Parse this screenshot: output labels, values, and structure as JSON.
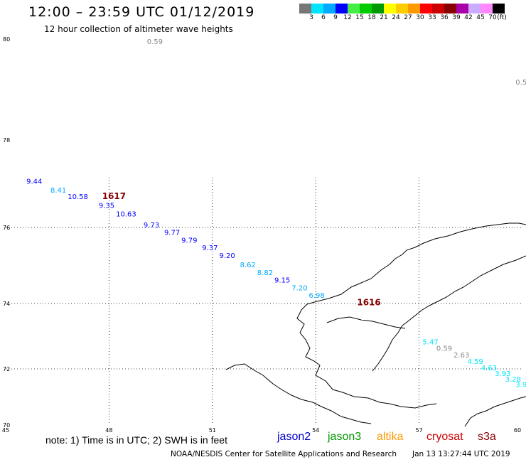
{
  "header": {
    "title": "12:00 – 23:59 UTC 01/12/2019",
    "subtitle": "12 hour collection of altimeter wave heights"
  },
  "legend": {
    "unit": "(ft)",
    "colors": [
      "#777777",
      "#00e5ff",
      "#00aaff",
      "#0000ff",
      "#44ee44",
      "#00cc00",
      "#009900",
      "#ffff00",
      "#ffcc00",
      "#ff9900",
      "#ff0000",
      "#cc0000",
      "#880000",
      "#aa00aa",
      "#ccaaff",
      "#ff88ff",
      "#000000"
    ],
    "labels": [
      "3",
      "6",
      "9",
      "12",
      "15",
      "18",
      "21",
      "24",
      "27",
      "30",
      "33",
      "36",
      "39",
      "42",
      "45",
      "70"
    ]
  },
  "map": {
    "lat_labels": [
      "80",
      "78",
      "76",
      "74",
      "72",
      "70"
    ],
    "lon_labels": [
      "45",
      "48",
      "51",
      "54",
      "57",
      "60"
    ],
    "wave_heights": [
      {
        "text": "0.59",
        "lon": 49.1,
        "lat": 79.9,
        "color": "#888888"
      },
      {
        "text": "0.5",
        "lon": 59.8,
        "lat": 79.1,
        "color": "#888888"
      },
      {
        "text": "9.44",
        "lon": 45.6,
        "lat": 77.0,
        "color": "#0000ff"
      },
      {
        "text": "8.41",
        "lon": 46.3,
        "lat": 76.8,
        "color": "#00aaff"
      },
      {
        "text": "10.58",
        "lon": 46.8,
        "lat": 76.65,
        "color": "#0000ff"
      },
      {
        "text": "9.35",
        "lon": 47.7,
        "lat": 76.45,
        "color": "#0000ff"
      },
      {
        "text": "10.63",
        "lon": 48.2,
        "lat": 76.25,
        "color": "#0000ff"
      },
      {
        "text": "9.73",
        "lon": 49.0,
        "lat": 76.0,
        "color": "#0000ff"
      },
      {
        "text": "9.77",
        "lon": 49.6,
        "lat": 75.8,
        "color": "#0000ff"
      },
      {
        "text": "9.79",
        "lon": 50.1,
        "lat": 75.6,
        "color": "#0000ff"
      },
      {
        "text": "9.37",
        "lon": 50.7,
        "lat": 75.4,
        "color": "#0000ff"
      },
      {
        "text": "9.20",
        "lon": 51.2,
        "lat": 75.2,
        "color": "#0000ff"
      },
      {
        "text": "8.62",
        "lon": 51.8,
        "lat": 74.95,
        "color": "#00aaff"
      },
      {
        "text": "8.82",
        "lon": 52.3,
        "lat": 74.75,
        "color": "#00aaff"
      },
      {
        "text": "9.15",
        "lon": 52.8,
        "lat": 74.55,
        "color": "#0000ff"
      },
      {
        "text": "7.20",
        "lon": 53.3,
        "lat": 74.35,
        "color": "#00aaff"
      },
      {
        "text": "6.98",
        "lon": 53.8,
        "lat": 74.15,
        "color": "#00aaff"
      },
      {
        "text": "5.47",
        "lon": 57.1,
        "lat": 72.75,
        "color": "#00e5ff"
      },
      {
        "text": "0.59",
        "lon": 57.5,
        "lat": 72.55,
        "color": "#888888"
      },
      {
        "text": "2.63",
        "lon": 58.0,
        "lat": 72.35,
        "color": "#888888"
      },
      {
        "text": "4.59",
        "lon": 58.4,
        "lat": 72.15,
        "color": "#00e5ff"
      },
      {
        "text": "4.63",
        "lon": 58.8,
        "lat": 71.95,
        "color": "#00e5ff"
      },
      {
        "text": "3.93",
        "lon": 59.2,
        "lat": 71.75,
        "color": "#00e5ff"
      },
      {
        "text": "3.28",
        "lon": 59.5,
        "lat": 71.55,
        "color": "#00e5ff"
      },
      {
        "text": "3.9",
        "lon": 59.8,
        "lat": 71.35,
        "color": "#00e5ff"
      }
    ],
    "pass_labels": [
      {
        "text": "1617",
        "lon": 47.8,
        "lat": 76.65,
        "color": "#880000"
      },
      {
        "text": "1616",
        "lon": 55.2,
        "lat": 73.95,
        "color": "#880000"
      }
    ]
  },
  "footer": {
    "note": "note:  1) Time is in UTC;  2) SWH is in feet",
    "satellites": [
      {
        "name": "jason2",
        "color": "#0000cc"
      },
      {
        "name": "jason3",
        "color": "#009900"
      },
      {
        "name": "altika",
        "color": "#ff9900"
      },
      {
        "name": "cryosat",
        "color": "#cc0000"
      },
      {
        "name": "s3a",
        "color": "#880000"
      }
    ],
    "credit": "NOAA/NESDIS Center for Satellite Applications and Research",
    "timestamp": "Jan 13 13:27:44 UTC 2019"
  }
}
